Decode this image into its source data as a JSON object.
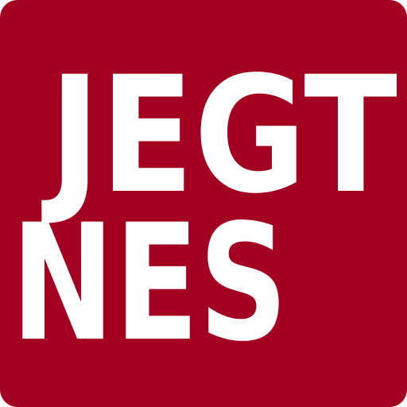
{
  "logo": {
    "line1": "JEGT",
    "line2": "NES"
  },
  "colors": {
    "background": "#a30021",
    "text": "#ffffff"
  }
}
